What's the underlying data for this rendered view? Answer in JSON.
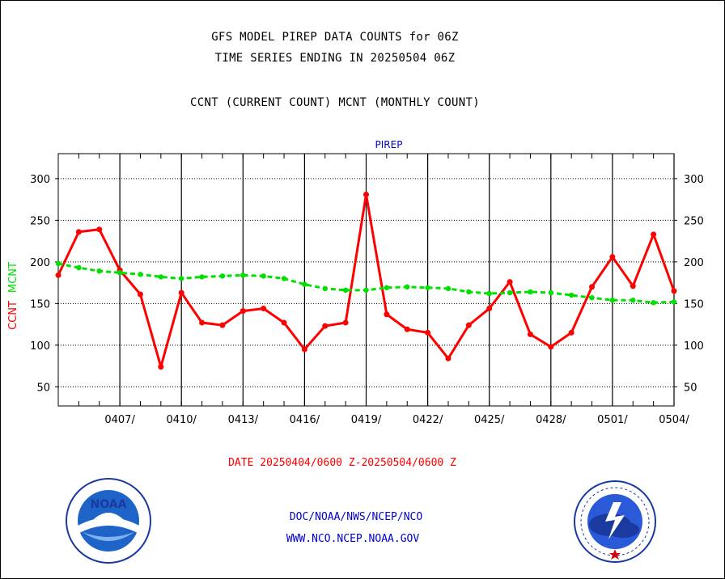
{
  "header": {
    "title_line1": "GFS MODEL PIREP DATA COUNTS for 06Z",
    "title_line2": "TIME SERIES ENDING IN 20250504 06Z",
    "title_line3": "CCNT (CURRENT COUNT) MCNT (MONTHLY COUNT)"
  },
  "footer": {
    "date_range": "DATE 20250404/0600 Z-20250504/0600 Z",
    "link1": "DOC/NOAA/NWS/NCEP/NCO",
    "link2": "WWW.NCO.NCEP.NOAA.GOV"
  },
  "logos": {
    "left": {
      "icon": "noaa-seal-icon",
      "text": "NOAA"
    },
    "right": {
      "icon": "nws-seal-icon"
    }
  },
  "colors": {
    "ccnt": "#ff0000",
    "mcnt": "#00e000",
    "panel_title": "#0000cc",
    "footer_links": "#0000cc",
    "date_text": "#ff0000"
  },
  "chart_data": {
    "type": "line",
    "title": "PIREP",
    "ylabel_left": "CCNT",
    "ylabel_right": "MCNT",
    "ylim": [
      27,
      330
    ],
    "yticks": [
      50,
      100,
      150,
      200,
      250,
      300
    ],
    "ytick_labels": [
      "50",
      "100",
      "150",
      "200",
      "250",
      "300"
    ],
    "xlim": [
      0,
      30
    ],
    "x_tick_positions": [
      3,
      6,
      9,
      12,
      15,
      18,
      21,
      24,
      27,
      30
    ],
    "x_tick_labels": [
      "0407/",
      "0410/",
      "0413/",
      "0416/",
      "0419/",
      "0422/",
      "0425/",
      "0428/",
      "0501/",
      "0504/"
    ],
    "x": [
      0,
      1,
      2,
      3,
      4,
      5,
      6,
      7,
      8,
      9,
      10,
      11,
      12,
      13,
      14,
      15,
      16,
      17,
      18,
      19,
      20,
      21,
      22,
      23,
      24,
      25,
      26,
      27,
      28,
      29,
      30
    ],
    "grid": true,
    "series": [
      {
        "name": "CCNT",
        "values": [
          184,
          236,
          239,
          190,
          161,
          74,
          163,
          127,
          124,
          141,
          144,
          127,
          95,
          123,
          127,
          281,
          137,
          119,
          115,
          84,
          124,
          144,
          176,
          113,
          98,
          115,
          170,
          206,
          171,
          233,
          165
        ]
      },
      {
        "name": "MCNT",
        "values": [
          198,
          193,
          189,
          187,
          185,
          182,
          180,
          182,
          183,
          184,
          183,
          180,
          173,
          168,
          166,
          166,
          169,
          170,
          169,
          168,
          164,
          162,
          163,
          164,
          163,
          160,
          157,
          154,
          154,
          151,
          152
        ]
      }
    ]
  }
}
